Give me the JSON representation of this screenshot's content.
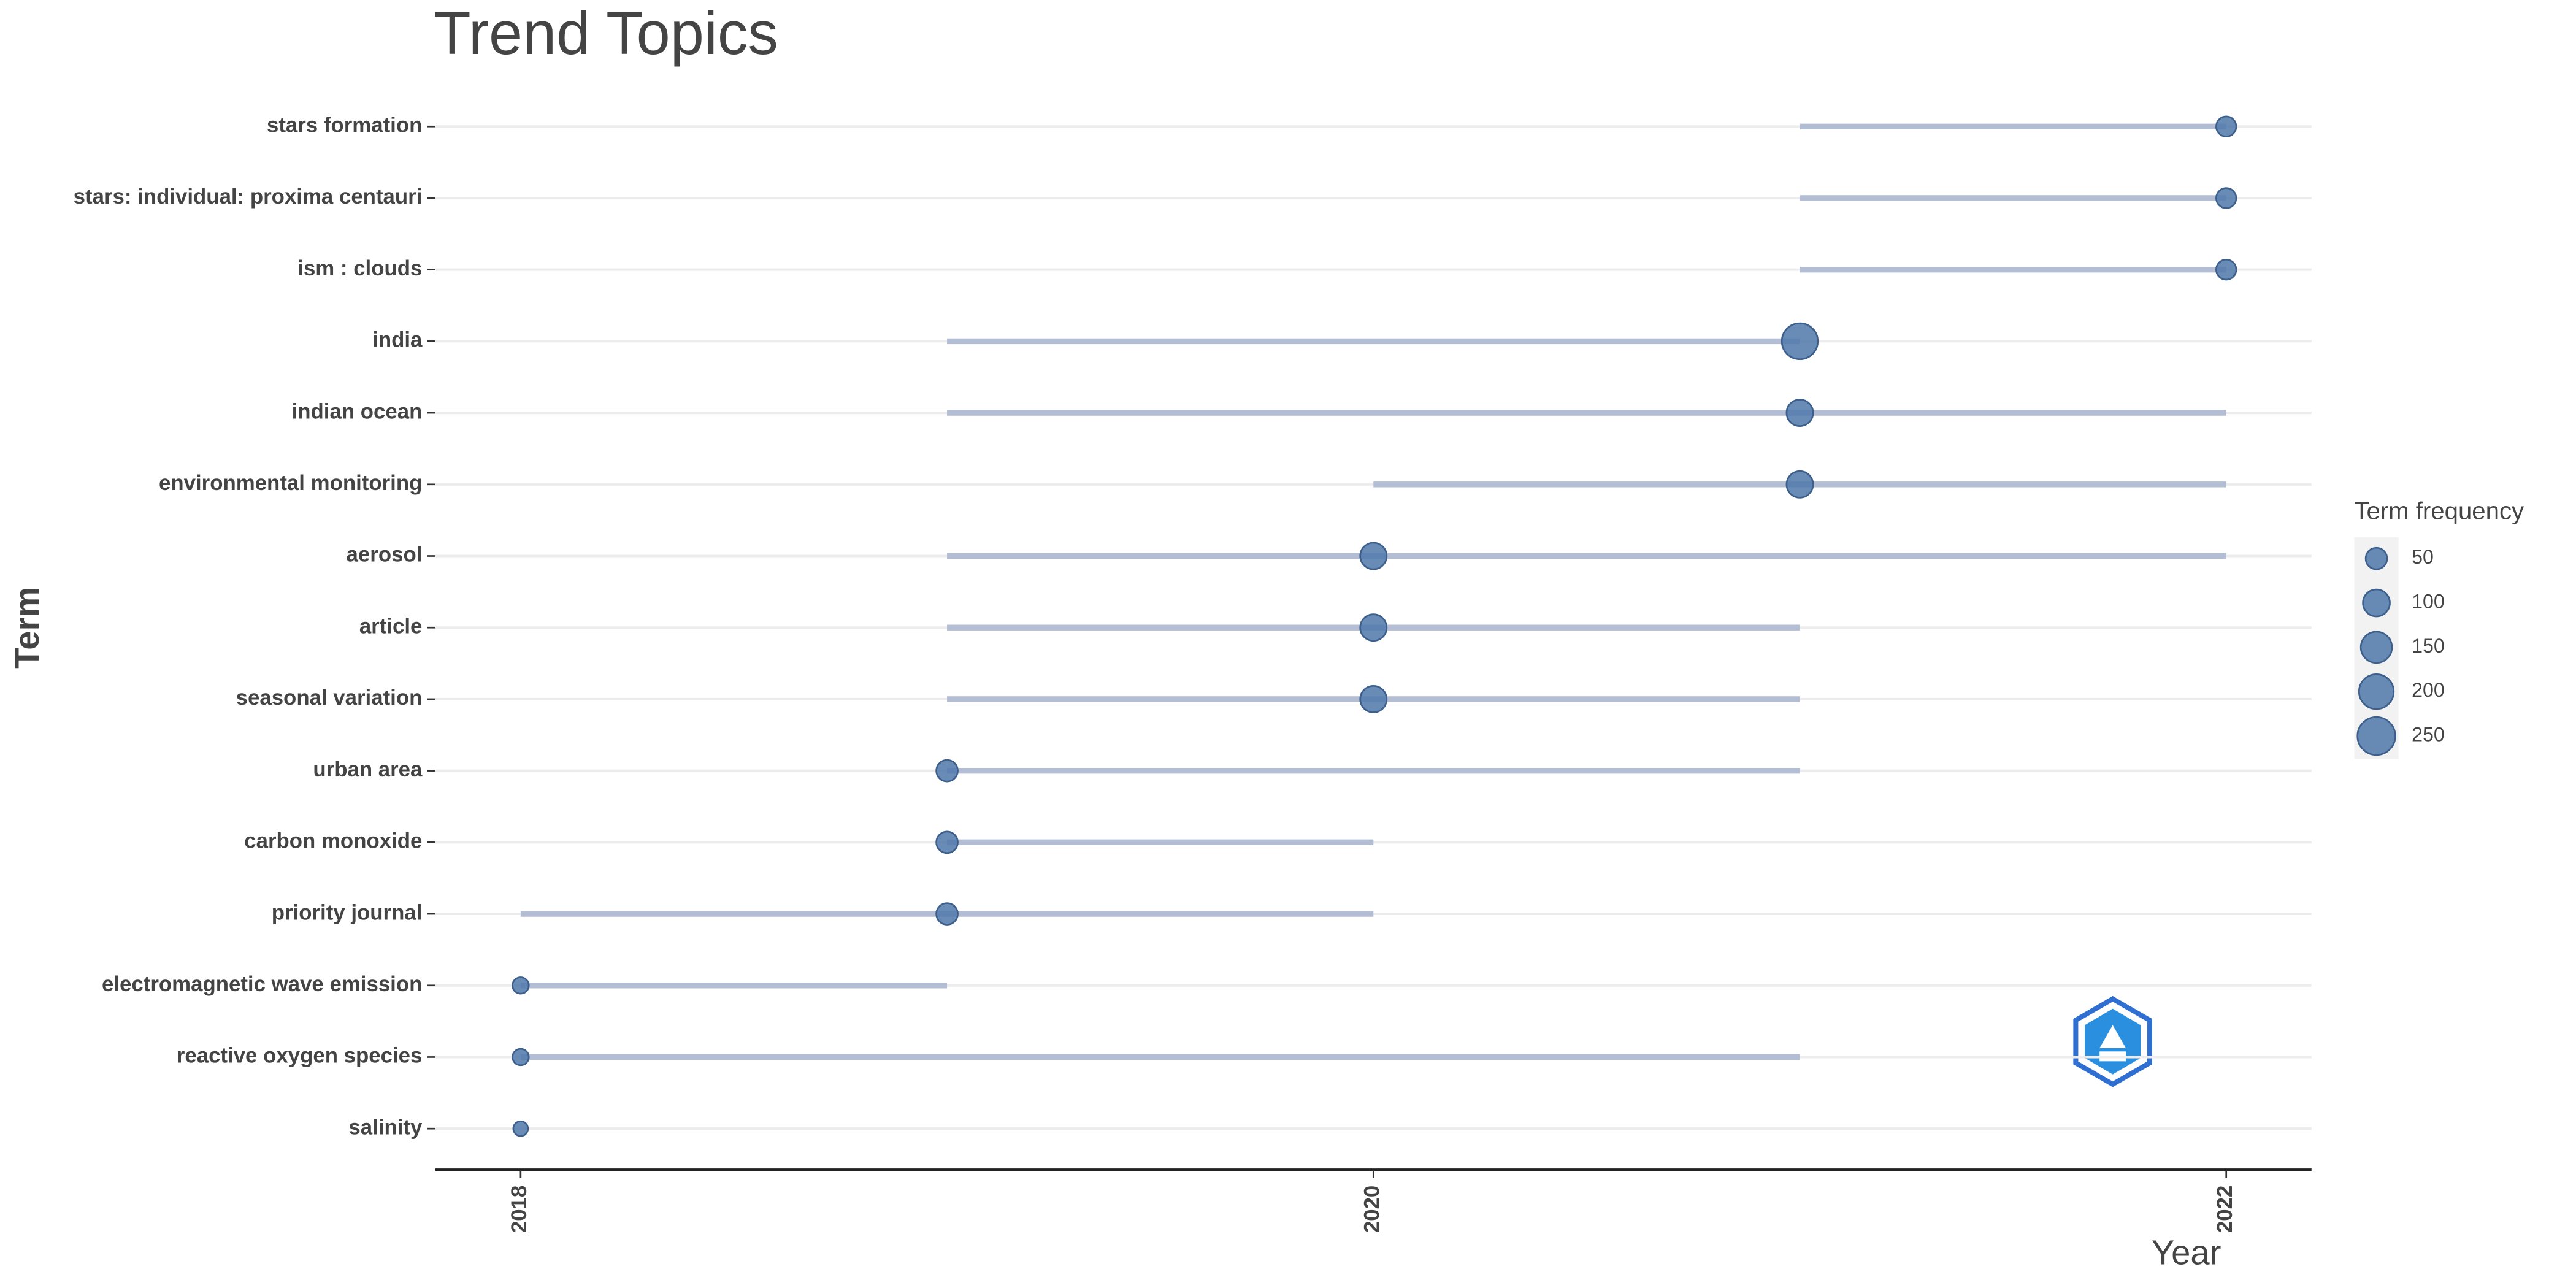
{
  "chart_data": {
    "type": "range-dot",
    "title": "Trend Topics",
    "x_label": "Year",
    "y_label": "Term",
    "categories": [
      "stars formation",
      "stars: individual: proxima centauri",
      "ism : clouds",
      "india",
      "indian ocean",
      "environmental monitoring",
      "aerosol",
      "article",
      "seasonal variation",
      "urban area",
      "carbon monoxide",
      "priority journal",
      "electromagnetic wave emission",
      "reactive oxygen species",
      "salinity"
    ],
    "year_q1": [
      2021,
      2021,
      2021,
      2019,
      2019,
      2020,
      2019,
      2019,
      2019,
      2019,
      2019,
      2018,
      2018,
      2018,
      2018
    ],
    "year_median": [
      2022,
      2022,
      2022,
      2021,
      2021,
      2021,
      2020,
      2020,
      2020,
      2019,
      2019,
      2019,
      2018,
      2018,
      2018
    ],
    "year_q3": [
      2022,
      2022,
      2022,
      2021,
      2022,
      2022,
      2022,
      2021,
      2021,
      2021,
      2020,
      2020,
      2019,
      2021,
      2018
    ],
    "frequency": [
      40,
      40,
      40,
      220,
      95,
      95,
      95,
      95,
      95,
      50,
      50,
      50,
      19,
      19,
      12
    ],
    "point_color": "#4f78aa",
    "line_color": "#b3bdd3",
    "xlim": [
      2017.8,
      2022.2
    ],
    "xticks": [
      2018,
      2020,
      2022
    ],
    "grid": true,
    "legend": {
      "title": "Term frequency",
      "sizes": [
        50,
        100,
        150,
        200,
        250
      ],
      "position": "right"
    }
  }
}
